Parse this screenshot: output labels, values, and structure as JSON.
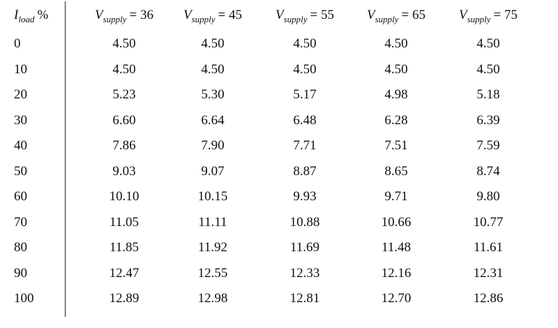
{
  "table": {
    "header": [
      {
        "symbol": "I",
        "subscript": "load",
        "rest": "%"
      },
      {
        "symbol": "V",
        "subscript": "supply",
        "rest": "= 36"
      },
      {
        "symbol": "V",
        "subscript": "supply",
        "rest": "= 45"
      },
      {
        "symbol": "V",
        "subscript": "supply",
        "rest": "= 55"
      },
      {
        "symbol": "V",
        "subscript": "supply",
        "rest": "= 65"
      },
      {
        "symbol": "V",
        "subscript": "supply",
        "rest": "= 75"
      }
    ],
    "rows": [
      [
        "0",
        "4.50",
        "4.50",
        "4.50",
        "4.50",
        "4.50"
      ],
      [
        "10",
        "4.50",
        "4.50",
        "4.50",
        "4.50",
        "4.50"
      ],
      [
        "20",
        "5.23",
        "5.30",
        "5.17",
        "4.98",
        "5.18"
      ],
      [
        "30",
        "6.60",
        "6.64",
        "6.48",
        "6.28",
        "6.39"
      ],
      [
        "40",
        "7.86",
        "7.90",
        "7.71",
        "7.51",
        "7.59"
      ],
      [
        "50",
        "9.03",
        "9.07",
        "8.87",
        "8.65",
        "8.74"
      ],
      [
        "60",
        "10.10",
        "10.15",
        "9.93",
        "9.71",
        "9.80"
      ],
      [
        "70",
        "11.05",
        "11.11",
        "10.88",
        "10.66",
        "10.77"
      ],
      [
        "80",
        "11.85",
        "11.92",
        "11.69",
        "11.48",
        "11.61"
      ],
      [
        "90",
        "12.47",
        "12.55",
        "12.33",
        "12.16",
        "12.31"
      ],
      [
        "100",
        "12.89",
        "12.98",
        "12.81",
        "12.70",
        "12.86"
      ]
    ]
  }
}
